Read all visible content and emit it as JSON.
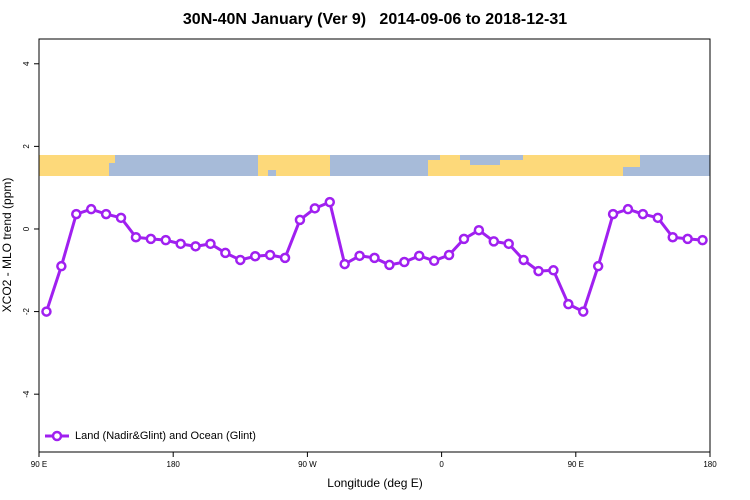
{
  "chart_data": {
    "type": "line",
    "title": "30N-40N January (Ver 9)   2014-09-06 to 2018-12-31",
    "xlabel": "Longitude (deg E)",
    "ylabel": "XCO2 - MLO trend (ppm)",
    "x": [
      95,
      105,
      115,
      125,
      135,
      145,
      155,
      165,
      175,
      185,
      195,
      205,
      215,
      225,
      235,
      245,
      255,
      265,
      275,
      285,
      295,
      305,
      315,
      325,
      335,
      345,
      355,
      365,
      375,
      385,
      395,
      405,
      415,
      425,
      435,
      445,
      455,
      465,
      475,
      485,
      495,
      505,
      515,
      525,
      535
    ],
    "series": [
      {
        "name": "Land (Nadir&Glint) and Ocean (Glint)",
        "color": "#a020f0",
        "values": [
          -2.0,
          -0.9,
          0.36,
          0.48,
          0.36,
          0.27,
          -0.2,
          -0.24,
          -0.27,
          -0.36,
          -0.42,
          -0.36,
          -0.58,
          -0.75,
          -0.66,
          -0.63,
          -0.7,
          0.22,
          0.5,
          0.65,
          -0.85,
          -0.65,
          -0.7,
          -0.87,
          -0.8,
          -0.65,
          -0.77,
          -0.63,
          -0.24,
          -0.03,
          -0.3,
          -0.36,
          -0.75,
          -1.02,
          -1.0,
          -1.82,
          -2.0,
          -0.9,
          0.36,
          0.48,
          0.36,
          0.27,
          -0.2,
          -0.24,
          -0.27
        ]
      }
    ],
    "xlim": [
      90,
      540
    ],
    "xticks": [
      {
        "value": 90,
        "label": "90 E"
      },
      180,
      {
        "value": 270,
        "label": "90 W"
      },
      {
        "value": 360,
        "label": "0"
      },
      {
        "value": 450,
        "label": "90 E"
      },
      {
        "value": 540,
        "label": "180"
      }
    ],
    "ylim": [
      -5.4,
      4.6
    ],
    "yticks": [
      -4,
      -2,
      0,
      2,
      4
    ],
    "legend": "bottomleft"
  }
}
